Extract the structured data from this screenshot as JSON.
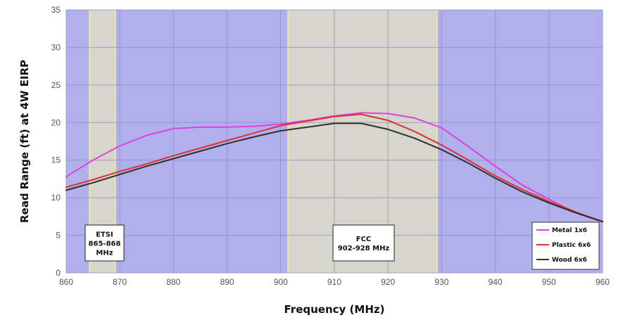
{
  "chart_data": {
    "type": "line",
    "xlabel": "Frequency (MHz)",
    "ylabel": "Read Range (ft) at 4W EIRP",
    "xlim": [
      860,
      960
    ],
    "ylim": [
      0,
      35
    ],
    "x_ticks": [
      "860",
      "870",
      "880",
      "890",
      "900",
      "910",
      "920",
      "930",
      "940",
      "950",
      "960"
    ],
    "y_ticks": [
      "0",
      "5",
      "10",
      "15",
      "20",
      "25",
      "30",
      "35"
    ],
    "grid": true,
    "legend_position": "bottom-right",
    "colors": {
      "background": "#b0b0ec",
      "band_fill": "#d6d6cc",
      "band_edge": "#efe7a6",
      "grid": "#8c8cc4"
    },
    "bands": [
      {
        "x0": 864.5,
        "x1": 869,
        "label_lines": [
          "ETSI",
          "865-868",
          "MHz"
        ]
      },
      {
        "x0": 901.5,
        "x1": 929,
        "label_lines": [
          "FCC",
          "902-928 MHz"
        ]
      }
    ],
    "series": [
      {
        "name": "Metal 1x6",
        "color": "#e040e0",
        "x": [
          860,
          865,
          870,
          875,
          880,
          885,
          890,
          895,
          900,
          905,
          910,
          915,
          920,
          925,
          930,
          935,
          940,
          945,
          950,
          955,
          960
        ],
        "y": [
          12.8,
          15.0,
          16.9,
          18.3,
          19.2,
          19.4,
          19.4,
          19.5,
          19.8,
          20.3,
          20.9,
          21.3,
          21.2,
          20.6,
          19.3,
          16.8,
          14.2,
          11.7,
          9.8,
          8.0,
          6.9
        ]
      },
      {
        "name": "Plastic 6x6",
        "color": "#e03030",
        "x": [
          860,
          865,
          870,
          875,
          880,
          885,
          890,
          895,
          900,
          905,
          910,
          915,
          920,
          925,
          930,
          935,
          940,
          945,
          950,
          955,
          960
        ],
        "y": [
          11.4,
          12.4,
          13.5,
          14.5,
          15.6,
          16.6,
          17.6,
          18.6,
          19.6,
          20.2,
          20.8,
          21.1,
          20.3,
          18.8,
          17.0,
          15.0,
          12.9,
          11.1,
          9.5,
          8.1,
          6.8
        ]
      },
      {
        "name": "Wood 6x6",
        "color": "#303030",
        "x": [
          860,
          865,
          870,
          875,
          880,
          885,
          890,
          895,
          900,
          905,
          910,
          915,
          920,
          925,
          930,
          935,
          940,
          945,
          950,
          955,
          960
        ],
        "y": [
          11.0,
          12.0,
          13.1,
          14.2,
          15.2,
          16.2,
          17.2,
          18.1,
          18.9,
          19.4,
          19.9,
          19.9,
          19.1,
          17.9,
          16.4,
          14.6,
          12.6,
          10.8,
          9.3,
          8.0,
          6.8
        ]
      }
    ]
  }
}
